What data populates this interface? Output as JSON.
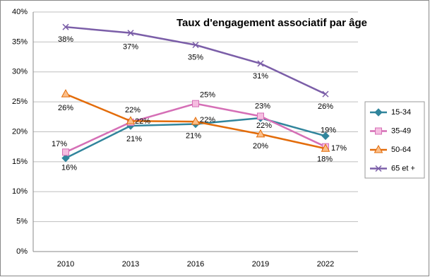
{
  "chart_data": {
    "type": "line",
    "title": "Taux d'engagement associatif par âge",
    "categories": [
      "2010",
      "2013",
      "2016",
      "2019",
      "2022"
    ],
    "series": [
      {
        "name": "15-34",
        "color": "#31859c",
        "marker": "diamond",
        "values": [
          15.6,
          21,
          21.3,
          22.3,
          19.3
        ],
        "value_labels": [
          "16%",
          "21%",
          "21%",
          "22%",
          "19%"
        ]
      },
      {
        "name": "35-49",
        "color": "#d56fb6",
        "marker": "square",
        "values": [
          16.6,
          21.6,
          24.7,
          22.6,
          17.5
        ],
        "value_labels": [
          "17%",
          "22%",
          "25%",
          "23%",
          "18%"
        ]
      },
      {
        "name": "50-64",
        "color": "#e36c0a",
        "marker": "triangle",
        "values": [
          26.3,
          21.8,
          21.7,
          19.6,
          17.2
        ],
        "value_labels": [
          "26%",
          "22%",
          "22%",
          "20%",
          "17%"
        ]
      },
      {
        "name": "65 et +",
        "color": "#7b5ea8",
        "marker": "x",
        "values": [
          37.5,
          36.5,
          34.5,
          31.4,
          26.3
        ],
        "value_labels": [
          "38%",
          "37%",
          "35%",
          "31%",
          "26%"
        ]
      }
    ],
    "ylim": [
      0,
      40
    ],
    "yticks": [
      {
        "value": 0,
        "label": "0%"
      },
      {
        "value": 5,
        "label": "5%"
      },
      {
        "value": 10,
        "label": "10%"
      },
      {
        "value": 15,
        "label": "15%"
      },
      {
        "value": 20,
        "label": "20%"
      },
      {
        "value": 25,
        "label": "25%"
      },
      {
        "value": 30,
        "label": "30%"
      },
      {
        "value": 35,
        "label": "35%"
      },
      {
        "value": 40,
        "label": "40%"
      }
    ],
    "grid": true,
    "legend": "right"
  }
}
